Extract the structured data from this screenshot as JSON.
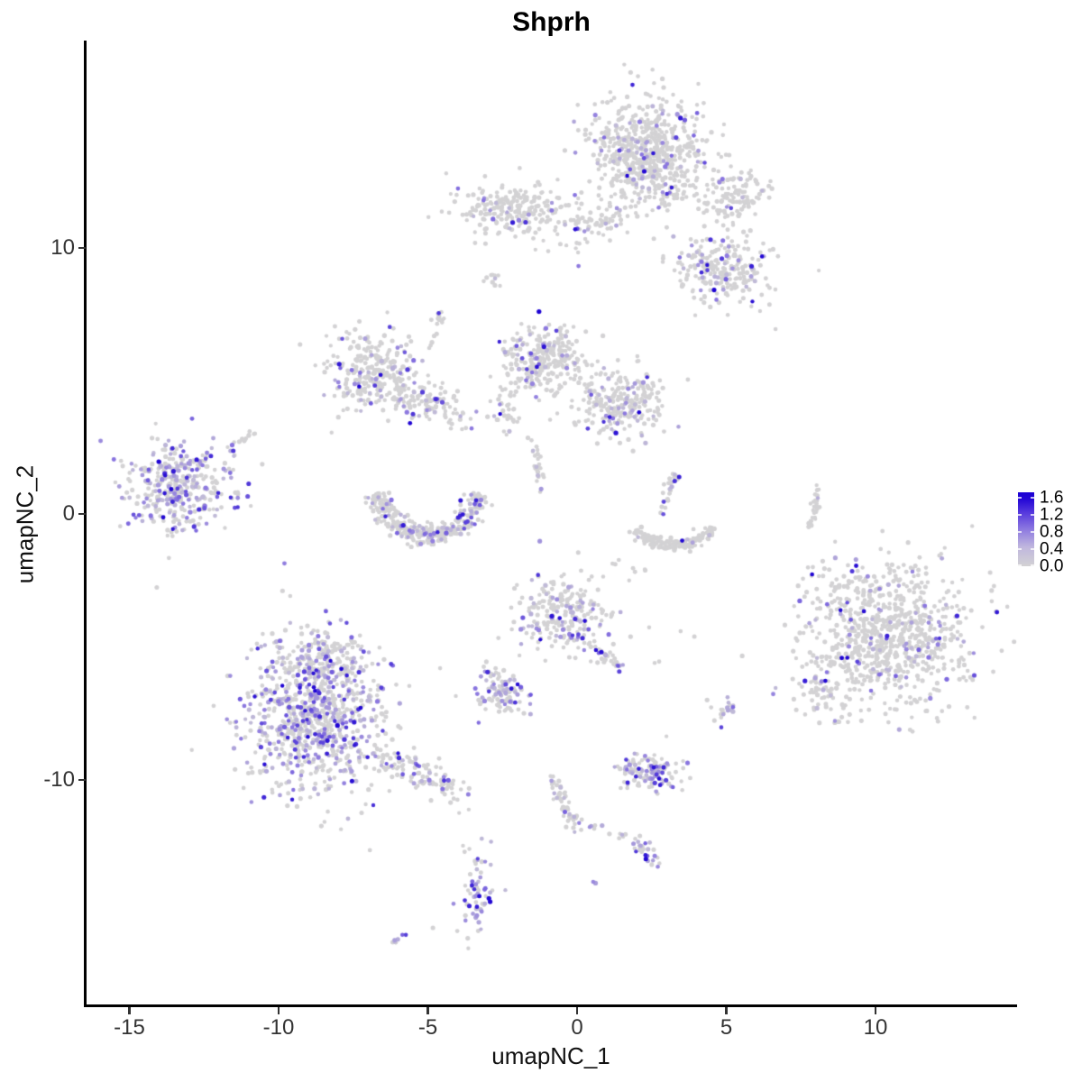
{
  "chart_data": {
    "type": "scatter",
    "title": "Shprh",
    "xlabel": "umapNC_1",
    "ylabel": "umapNC_2",
    "x_ticks": [
      -15,
      -10,
      -5,
      0,
      5,
      10
    ],
    "y_ticks": [
      10,
      0,
      -10
    ],
    "x_range": [
      -16.5,
      14.8
    ],
    "y_range": [
      -18.5,
      17.8
    ],
    "grid": false,
    "legend": {
      "values": [
        1.6,
        1.2,
        0.8,
        0.4,
        0.0
      ],
      "position": "right",
      "scale_max": 1.73
    },
    "colors": {
      "low": "#d3d2d4",
      "mid": "#8d79e0",
      "high": "#1b00d3"
    },
    "point_radius": 2.35,
    "seed": 7,
    "expression": {
      "min": 0.22,
      "max": 1.7,
      "skew": 2.2
    },
    "clusters": [
      {
        "name": "top-main",
        "shape": "gauss",
        "cx": 2.42,
        "cy": 13.56,
        "sx": 0.97,
        "sy": 1.02,
        "n": 650,
        "frac": 0.1
      },
      {
        "name": "top-right-a",
        "shape": "gauss",
        "cx": 5.29,
        "cy": 11.93,
        "sx": 0.58,
        "sy": 0.5,
        "n": 110,
        "frac": 0.08
      },
      {
        "name": "top-right-b",
        "shape": "gauss",
        "cx": 4.83,
        "cy": 9.25,
        "sx": 0.78,
        "sy": 0.6,
        "n": 230,
        "frac": 0.14
      },
      {
        "name": "upper-band",
        "shape": "gauss",
        "cx": -1.96,
        "cy": 11.42,
        "sx": 1.0,
        "sy": 0.45,
        "n": 240,
        "frac": 0.13,
        "rot": -4
      },
      {
        "name": "upper-band-tail",
        "shape": "gauss",
        "cx": 0.76,
        "cy": 10.92,
        "sx": 0.55,
        "sy": 0.25,
        "n": 45,
        "frac": 0.08
      },
      {
        "name": "small-blob",
        "shape": "gauss",
        "cx": -2.75,
        "cy": 8.81,
        "sx": 0.18,
        "sy": 0.17,
        "n": 10,
        "frac": 0.1
      },
      {
        "name": "midleft-wing",
        "shape": "gauss",
        "cx": -6.89,
        "cy": 5.36,
        "sx": 0.78,
        "sy": 0.72,
        "n": 280,
        "frac": 0.17
      },
      {
        "name": "midleft-arm",
        "shape": "gauss",
        "cx": -4.89,
        "cy": 4.14,
        "sx": 0.78,
        "sy": 0.38,
        "n": 110,
        "frac": 0.12,
        "rot": -20
      },
      {
        "name": "mid-top-lobe",
        "shape": "gauss",
        "cx": -1.06,
        "cy": 5.83,
        "sx": 0.72,
        "sy": 0.62,
        "n": 270,
        "frac": 0.15
      },
      {
        "name": "mid-right-lobe",
        "shape": "gauss",
        "cx": 1.51,
        "cy": 4.17,
        "sx": 0.78,
        "sy": 0.6,
        "n": 250,
        "frac": 0.18
      },
      {
        "name": "mid-left-tail",
        "shape": "gauss",
        "cx": -2.36,
        "cy": 4.14,
        "sx": 0.28,
        "sy": 0.52,
        "n": 35,
        "frac": 0.05
      },
      {
        "name": "left-far",
        "shape": "gauss",
        "cx": -13.29,
        "cy": 1.02,
        "sx": 0.9,
        "sy": 0.82,
        "n": 380,
        "frac": 0.45
      },
      {
        "name": "center-lower",
        "shape": "gauss",
        "cx": -0.36,
        "cy": -3.8,
        "sx": 0.78,
        "sy": 0.8,
        "n": 240,
        "frac": 0.28
      },
      {
        "name": "small-left-lower",
        "shape": "gauss",
        "cx": -2.51,
        "cy": -6.78,
        "sx": 0.5,
        "sy": 0.42,
        "n": 110,
        "frac": 0.35,
        "rot": -25
      },
      {
        "name": "bottomleft-main",
        "shape": "gauss",
        "cx": -8.82,
        "cy": -7.63,
        "sx": 1.12,
        "sy": 1.5,
        "n": 850,
        "frac": 0.33
      },
      {
        "name": "bottomleft-top",
        "shape": "gauss",
        "cx": -8.46,
        "cy": -5.42,
        "sx": 0.75,
        "sy": 0.4,
        "n": 120,
        "frac": 0.3
      },
      {
        "name": "right-big",
        "shape": "gauss",
        "cx": 10.42,
        "cy": -4.51,
        "sx": 1.42,
        "sy": 1.4,
        "n": 850,
        "frac": 0.09
      },
      {
        "name": "right-big-arm",
        "shape": "gauss",
        "cx": 8.16,
        "cy": -6.51,
        "sx": 0.42,
        "sy": 0.66,
        "n": 60,
        "frac": 0.15
      },
      {
        "name": "tiny-right",
        "shape": "gauss",
        "cx": 4.83,
        "cy": -7.36,
        "sx": 0.24,
        "sy": 0.26,
        "n": 20,
        "frac": 0.4
      },
      {
        "name": "dense-purple-small",
        "shape": "gauss",
        "cx": 2.48,
        "cy": -9.69,
        "sx": 0.54,
        "sy": 0.33,
        "n": 120,
        "frac": 0.5
      },
      {
        "name": "strand-bottom-blob",
        "shape": "gauss",
        "cx": -0.12,
        "cy": -11.69,
        "sx": 0.2,
        "sy": 0.25,
        "n": 12,
        "frac": 0.5
      },
      {
        "name": "pair-a",
        "shape": "gauss",
        "cx": 0.6,
        "cy": -11.8,
        "sx": 0.15,
        "sy": 0.12,
        "n": 5,
        "frac": 0.4
      },
      {
        "name": "pair-b",
        "shape": "gauss",
        "cx": 1.51,
        "cy": -12.03,
        "sx": 0.2,
        "sy": 0.12,
        "n": 6,
        "frac": 0.1
      },
      {
        "name": "bottom-vertical",
        "shape": "gauss",
        "cx": -3.41,
        "cy": -14.24,
        "sx": 0.26,
        "sy": 0.86,
        "n": 65,
        "frac": 0.5
      },
      {
        "name": "bird-sparse",
        "shape": "gauss",
        "cx": 1.81,
        "cy": -2.03,
        "sx": 0.3,
        "sy": 0.2,
        "n": 8,
        "frac": 0.0
      },
      {
        "name": "sparse-top-field",
        "shape": "gauss",
        "cx": 0.0,
        "cy": 10.1,
        "sx": 1.5,
        "sy": 0.5,
        "n": 14,
        "frac": 0.05
      },
      {
        "name": "purple-streak",
        "shape": "line",
        "x1": -5.59,
        "y1": 3.39,
        "x2": -4.59,
        "y2": 4.34,
        "n": 9,
        "frac": 0.95,
        "jitter": 0.06
      },
      {
        "name": "strand-up",
        "shape": "line",
        "x1": -4.77,
        "y1": 6.51,
        "x2": -4.53,
        "y2": 7.63,
        "n": 14,
        "frac": 0.15,
        "jitter": 0.08
      },
      {
        "name": "mid-down-strand",
        "shape": "line",
        "x1": -1.45,
        "y1": 2.88,
        "x2": -1.21,
        "y2": 0.85,
        "n": 25,
        "frac": 0.25,
        "jitter": 0.1
      },
      {
        "name": "left-far-tail",
        "shape": "line",
        "x1": -11.72,
        "y1": 2.31,
        "x2": -10.82,
        "y2": 3.12,
        "n": 16,
        "frac": 0.35,
        "jitter": 0.1
      },
      {
        "name": "bird-arm",
        "shape": "line",
        "x1": 3.26,
        "y1": 1.56,
        "x2": 2.9,
        "y2": -0.07,
        "n": 30,
        "frac": 0.3,
        "jitter": 0.1
      },
      {
        "name": "right-thin-strand",
        "shape": "line",
        "x1": 7.79,
        "y1": -0.61,
        "x2": 8.1,
        "y2": 1.08,
        "n": 30,
        "frac": 0.03,
        "jitter": 0.06
      },
      {
        "name": "center-lower-tail",
        "shape": "line",
        "x1": 0.45,
        "y1": -4.75,
        "x2": 1.45,
        "y2": -5.93,
        "n": 30,
        "frac": 0.3,
        "jitter": 0.12
      },
      {
        "name": "bottomleft-arm",
        "shape": "line",
        "x1": -6.8,
        "y1": -8.81,
        "x2": -3.93,
        "y2": -10.58,
        "n": 110,
        "frac": 0.22,
        "jitter": 0.3
      },
      {
        "name": "strand-down",
        "shape": "line",
        "x1": -0.85,
        "y1": -9.76,
        "x2": -0.21,
        "y2": -11.46,
        "n": 40,
        "frac": 0.12,
        "jitter": 0.1
      },
      {
        "name": "diag-cluster",
        "shape": "line",
        "x1": 1.87,
        "y1": -12.2,
        "x2": 2.66,
        "y2": -13.05,
        "n": 28,
        "frac": 0.55,
        "jitter": 0.12
      },
      {
        "name": "tiny-diag",
        "shape": "line",
        "x1": -6.25,
        "y1": -16.17,
        "x2": -5.8,
        "y2": -15.8,
        "n": 7,
        "frac": 0.85,
        "jitter": 0.05
      },
      {
        "name": "crescent",
        "shape": "arc",
        "cx": -4.98,
        "cy": 1.29,
        "rx": 1.81,
        "ry": 2.1,
        "a0": 195,
        "a1": 345,
        "thick": 0.1,
        "n": 360,
        "frac": 0.22
      },
      {
        "name": "bird-body",
        "shape": "arc",
        "cx": 3.26,
        "cy": -0.17,
        "rx": 1.36,
        "ry": 1.02,
        "a0": 200,
        "a1": 340,
        "thick": 0.1,
        "n": 150,
        "frac": 0.03
      },
      {
        "name": "singles",
        "shape": "points",
        "pts": [
          [
            6.65,
            6.95,
            0
          ],
          [
            8.1,
            9.15,
            0
          ],
          [
            6.13,
            7.63,
            0
          ],
          [
            3.47,
            -4.41,
            0
          ],
          [
            3.93,
            -4.61,
            0
          ],
          [
            -4.83,
            -15.56,
            0
          ],
          [
            0.54,
            -13.83,
            0.7
          ],
          [
            0.62,
            -13.88,
            0.5
          ],
          [
            -7.25,
            -7.29,
            1.65
          ],
          [
            3.17,
            12.27,
            1.5
          ],
          [
            4.17,
            9.08,
            1.4
          ],
          [
            7.9,
            -2.0,
            0
          ],
          [
            2.6,
            -5.6,
            0
          ],
          [
            2.75,
            -5.55,
            0
          ]
        ]
      }
    ]
  }
}
